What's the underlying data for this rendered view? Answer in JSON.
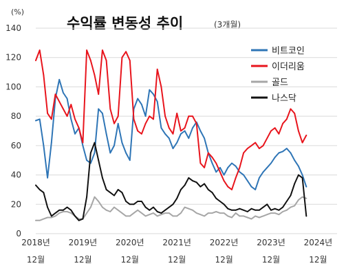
{
  "chart_data": {
    "type": "line",
    "title": "수익률 변동성 추이",
    "subtitle": "(3개월)",
    "y_unit": "(%)",
    "ylim": [
      0,
      140
    ],
    "y_ticks": [
      0,
      20,
      40,
      60,
      80,
      100,
      120,
      140
    ],
    "x_start": "2018-12",
    "x_end": "2024-09",
    "x_ticks": [
      {
        "date": "2018-12",
        "year": "2018년",
        "month": "12월"
      },
      {
        "date": "2019-12",
        "year": "2019년",
        "month": "12월"
      },
      {
        "date": "2020-12",
        "year": "2020년",
        "month": "12월"
      },
      {
        "date": "2021-12",
        "year": "2021년",
        "month": "12월"
      },
      {
        "date": "2022-12",
        "year": "2022년",
        "month": "12월"
      },
      {
        "date": "2023-12",
        "year": "2023년",
        "month": "12월"
      },
      {
        "date": "2024-12",
        "year": "2024년",
        "month": "12월"
      }
    ],
    "grid": "horizontal",
    "legend_position": "top-right",
    "series": [
      {
        "name": "비트코인",
        "color": "#2e75b6",
        "x": [
          "2018-12",
          "2019-01",
          "2019-02",
          "2019-03",
          "2019-04",
          "2019-05",
          "2019-06",
          "2019-07",
          "2019-08",
          "2019-09",
          "2019-10",
          "2019-11",
          "2019-12",
          "2020-01",
          "2020-02",
          "2020-03",
          "2020-04",
          "2020-05",
          "2020-06",
          "2020-07",
          "2020-08",
          "2020-09",
          "2020-10",
          "2020-11",
          "2020-12",
          "2021-01",
          "2021-02",
          "2021-03",
          "2021-04",
          "2021-05",
          "2021-06",
          "2021-07",
          "2021-08",
          "2021-09",
          "2021-10",
          "2021-11",
          "2021-12",
          "2022-01",
          "2022-02",
          "2022-03",
          "2022-04",
          "2022-05",
          "2022-06",
          "2022-07",
          "2022-08",
          "2022-09",
          "2022-10",
          "2022-11",
          "2022-12",
          "2023-01",
          "2023-02",
          "2023-03",
          "2023-04",
          "2023-05",
          "2023-06",
          "2023-07",
          "2023-08",
          "2023-09",
          "2023-10",
          "2023-11",
          "2023-12",
          "2024-01",
          "2024-02",
          "2024-03",
          "2024-04",
          "2024-05",
          "2024-06",
          "2024-07",
          "2024-08",
          "2024-09"
        ],
        "values": [
          77,
          78,
          60,
          38,
          62,
          92,
          105,
          96,
          92,
          78,
          68,
          72,
          60,
          50,
          48,
          55,
          85,
          82,
          68,
          55,
          60,
          75,
          62,
          55,
          50,
          85,
          92,
          88,
          80,
          98,
          95,
          90,
          72,
          68,
          65,
          58,
          62,
          68,
          70,
          65,
          72,
          76,
          70,
          65,
          55,
          48,
          42,
          45,
          40,
          45,
          48,
          46,
          42,
          40,
          36,
          32,
          30,
          38,
          42,
          45,
          48,
          52,
          55,
          56,
          58,
          55,
          50,
          46,
          40,
          32
        ]
      },
      {
        "name": "이더리움",
        "color": "#e8141c",
        "x": [
          "2018-12",
          "2019-01",
          "2019-02",
          "2019-03",
          "2019-04",
          "2019-05",
          "2019-06",
          "2019-07",
          "2019-08",
          "2019-09",
          "2019-10",
          "2019-11",
          "2019-12",
          "2020-01",
          "2020-02",
          "2020-03",
          "2020-04",
          "2020-05",
          "2020-06",
          "2020-07",
          "2020-08",
          "2020-09",
          "2020-10",
          "2020-11",
          "2020-12",
          "2021-01",
          "2021-02",
          "2021-03",
          "2021-04",
          "2021-05",
          "2021-06",
          "2021-07",
          "2021-08",
          "2021-09",
          "2021-10",
          "2021-11",
          "2021-12",
          "2022-01",
          "2022-02",
          "2022-03",
          "2022-04",
          "2022-05",
          "2022-06",
          "2022-07",
          "2022-08",
          "2022-09",
          "2022-10",
          "2022-11",
          "2022-12",
          "2023-01",
          "2023-02",
          "2023-03",
          "2023-04",
          "2023-05",
          "2023-06",
          "2023-07",
          "2023-08",
          "2023-09",
          "2023-10",
          "2023-11",
          "2023-12",
          "2024-01",
          "2024-02",
          "2024-03",
          "2024-04",
          "2024-05",
          "2024-06",
          "2024-07",
          "2024-08",
          "2024-09"
        ],
        "values": [
          118,
          125,
          108,
          82,
          78,
          95,
          90,
          85,
          80,
          88,
          78,
          72,
          62,
          125,
          118,
          108,
          95,
          125,
          118,
          85,
          75,
          80,
          120,
          124,
          118,
          78,
          70,
          68,
          75,
          80,
          78,
          112,
          100,
          80,
          72,
          68,
          82,
          70,
          72,
          80,
          80,
          75,
          48,
          45,
          55,
          52,
          48,
          42,
          36,
          32,
          30,
          38,
          45,
          55,
          58,
          60,
          62,
          58,
          60,
          65,
          70,
          72,
          68,
          75,
          78,
          85,
          82,
          70,
          62,
          67
        ]
      },
      {
        "name": "골드",
        "color": "#a6a6a6",
        "x": [
          "2018-12",
          "2019-01",
          "2019-02",
          "2019-03",
          "2019-04",
          "2019-05",
          "2019-06",
          "2019-07",
          "2019-08",
          "2019-09",
          "2019-10",
          "2019-11",
          "2019-12",
          "2020-01",
          "2020-02",
          "2020-03",
          "2020-04",
          "2020-05",
          "2020-06",
          "2020-07",
          "2020-08",
          "2020-09",
          "2020-10",
          "2020-11",
          "2020-12",
          "2021-01",
          "2021-02",
          "2021-03",
          "2021-04",
          "2021-05",
          "2021-06",
          "2021-07",
          "2021-08",
          "2021-09",
          "2021-10",
          "2021-11",
          "2021-12",
          "2022-01",
          "2022-02",
          "2022-03",
          "2022-04",
          "2022-05",
          "2022-06",
          "2022-07",
          "2022-08",
          "2022-09",
          "2022-10",
          "2022-11",
          "2022-12",
          "2023-01",
          "2023-02",
          "2023-03",
          "2023-04",
          "2023-05",
          "2023-06",
          "2023-07",
          "2023-08",
          "2023-09",
          "2023-10",
          "2023-11",
          "2023-12",
          "2024-01",
          "2024-02",
          "2024-03",
          "2024-04",
          "2024-05",
          "2024-06",
          "2024-07",
          "2024-08",
          "2024-09"
        ],
        "values": [
          9,
          9,
          10,
          11,
          11,
          12,
          14,
          15,
          15,
          14,
          12,
          10,
          10,
          14,
          18,
          25,
          22,
          18,
          16,
          15,
          18,
          16,
          14,
          12,
          12,
          14,
          16,
          14,
          12,
          13,
          14,
          12,
          13,
          14,
          14,
          12,
          12,
          14,
          18,
          17,
          16,
          14,
          13,
          12,
          14,
          14,
          15,
          14,
          14,
          12,
          11,
          14,
          12,
          12,
          11,
          10,
          12,
          11,
          12,
          13,
          14,
          14,
          13,
          15,
          16,
          18,
          19,
          23,
          25,
          24
        ]
      },
      {
        "name": "나스닥",
        "color": "#111111",
        "x": [
          "2018-12",
          "2019-01",
          "2019-02",
          "2019-03",
          "2019-04",
          "2019-05",
          "2019-06",
          "2019-07",
          "2019-08",
          "2019-09",
          "2019-10",
          "2019-11",
          "2019-12",
          "2020-01",
          "2020-02",
          "2020-03",
          "2020-04",
          "2020-05",
          "2020-06",
          "2020-07",
          "2020-08",
          "2020-09",
          "2020-10",
          "2020-11",
          "2020-12",
          "2021-01",
          "2021-02",
          "2021-03",
          "2021-04",
          "2021-05",
          "2021-06",
          "2021-07",
          "2021-08",
          "2021-09",
          "2021-10",
          "2021-11",
          "2021-12",
          "2022-01",
          "2022-02",
          "2022-03",
          "2022-04",
          "2022-05",
          "2022-06",
          "2022-07",
          "2022-08",
          "2022-09",
          "2022-10",
          "2022-11",
          "2022-12",
          "2023-01",
          "2023-02",
          "2023-03",
          "2023-04",
          "2023-05",
          "2023-06",
          "2023-07",
          "2023-08",
          "2023-09",
          "2023-10",
          "2023-11",
          "2023-12",
          "2024-01",
          "2024-02",
          "2024-03",
          "2024-04",
          "2024-05",
          "2024-06",
          "2024-07",
          "2024-08",
          "2024-09"
        ],
        "values": [
          33,
          30,
          28,
          18,
          12,
          14,
          16,
          16,
          18,
          16,
          12,
          9,
          10,
          25,
          55,
          62,
          50,
          38,
          30,
          28,
          26,
          30,
          28,
          22,
          20,
          20,
          22,
          22,
          18,
          16,
          18,
          15,
          14,
          16,
          18,
          20,
          24,
          30,
          33,
          38,
          36,
          35,
          32,
          34,
          30,
          28,
          24,
          22,
          20,
          17,
          16,
          16,
          17,
          16,
          15,
          17,
          16,
          16,
          18,
          20,
          16,
          17,
          16,
          18,
          22,
          26,
          34,
          40,
          38,
          12
        ]
      }
    ]
  }
}
